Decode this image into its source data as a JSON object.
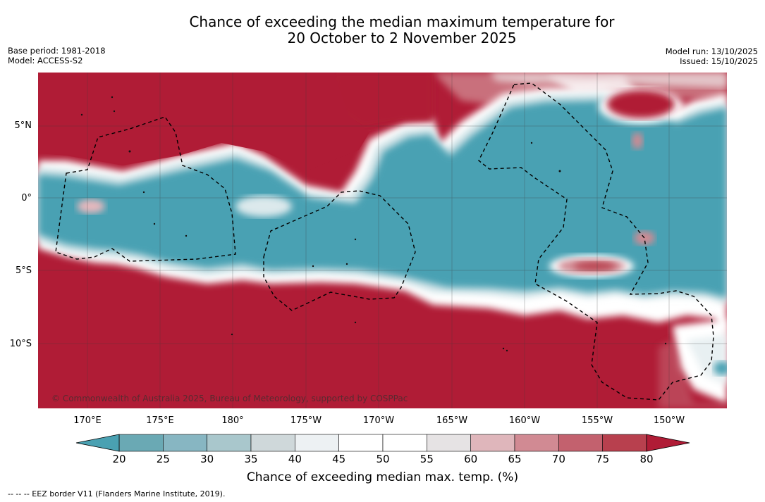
{
  "title": {
    "line1": "Chance of exceeding the median maximum temperature for",
    "line2": "20 October to 2 November 2025"
  },
  "meta_left": {
    "base_period": "Base period: 1981-2018",
    "model": "Model: ACCESS-S2"
  },
  "meta_right": {
    "model_run": "Model run: 13/10/2025",
    "issued": "Issued: 15/10/2025"
  },
  "map": {
    "lat_labels": [
      "5°N",
      "0°",
      "5°S",
      "10°S"
    ],
    "lon_labels": [
      "170°E",
      "175°E",
      "180°",
      "175°W",
      "170°W",
      "165°W",
      "160°W",
      "155°W",
      "150°W"
    ],
    "copyright": "© Commonwealth of Australia 2025, Bureau of Meteorology, supported by COSPPac"
  },
  "colorbar": {
    "ticks": [
      "20",
      "25",
      "30",
      "35",
      "40",
      "45",
      "50",
      "55",
      "60",
      "65",
      "70",
      "75",
      "80"
    ],
    "colors": [
      "#6aa9b4",
      "#87b6c2",
      "#a9c7cc",
      "#cfd8da",
      "#edf1f3",
      "#ffffff",
      "#ffffff",
      "#e6e3e4",
      "#dfb6bb",
      "#d18a93",
      "#c3616e",
      "#b8404e"
    ],
    "extend_low_color": "#4aa1b2",
    "extend_high_color": "#b01c36",
    "label": "Chance of exceeding median max. temp. (%)"
  },
  "footer": "--  --  -- EEZ border V11 (Flanders Marine Institute, 2019)."
}
